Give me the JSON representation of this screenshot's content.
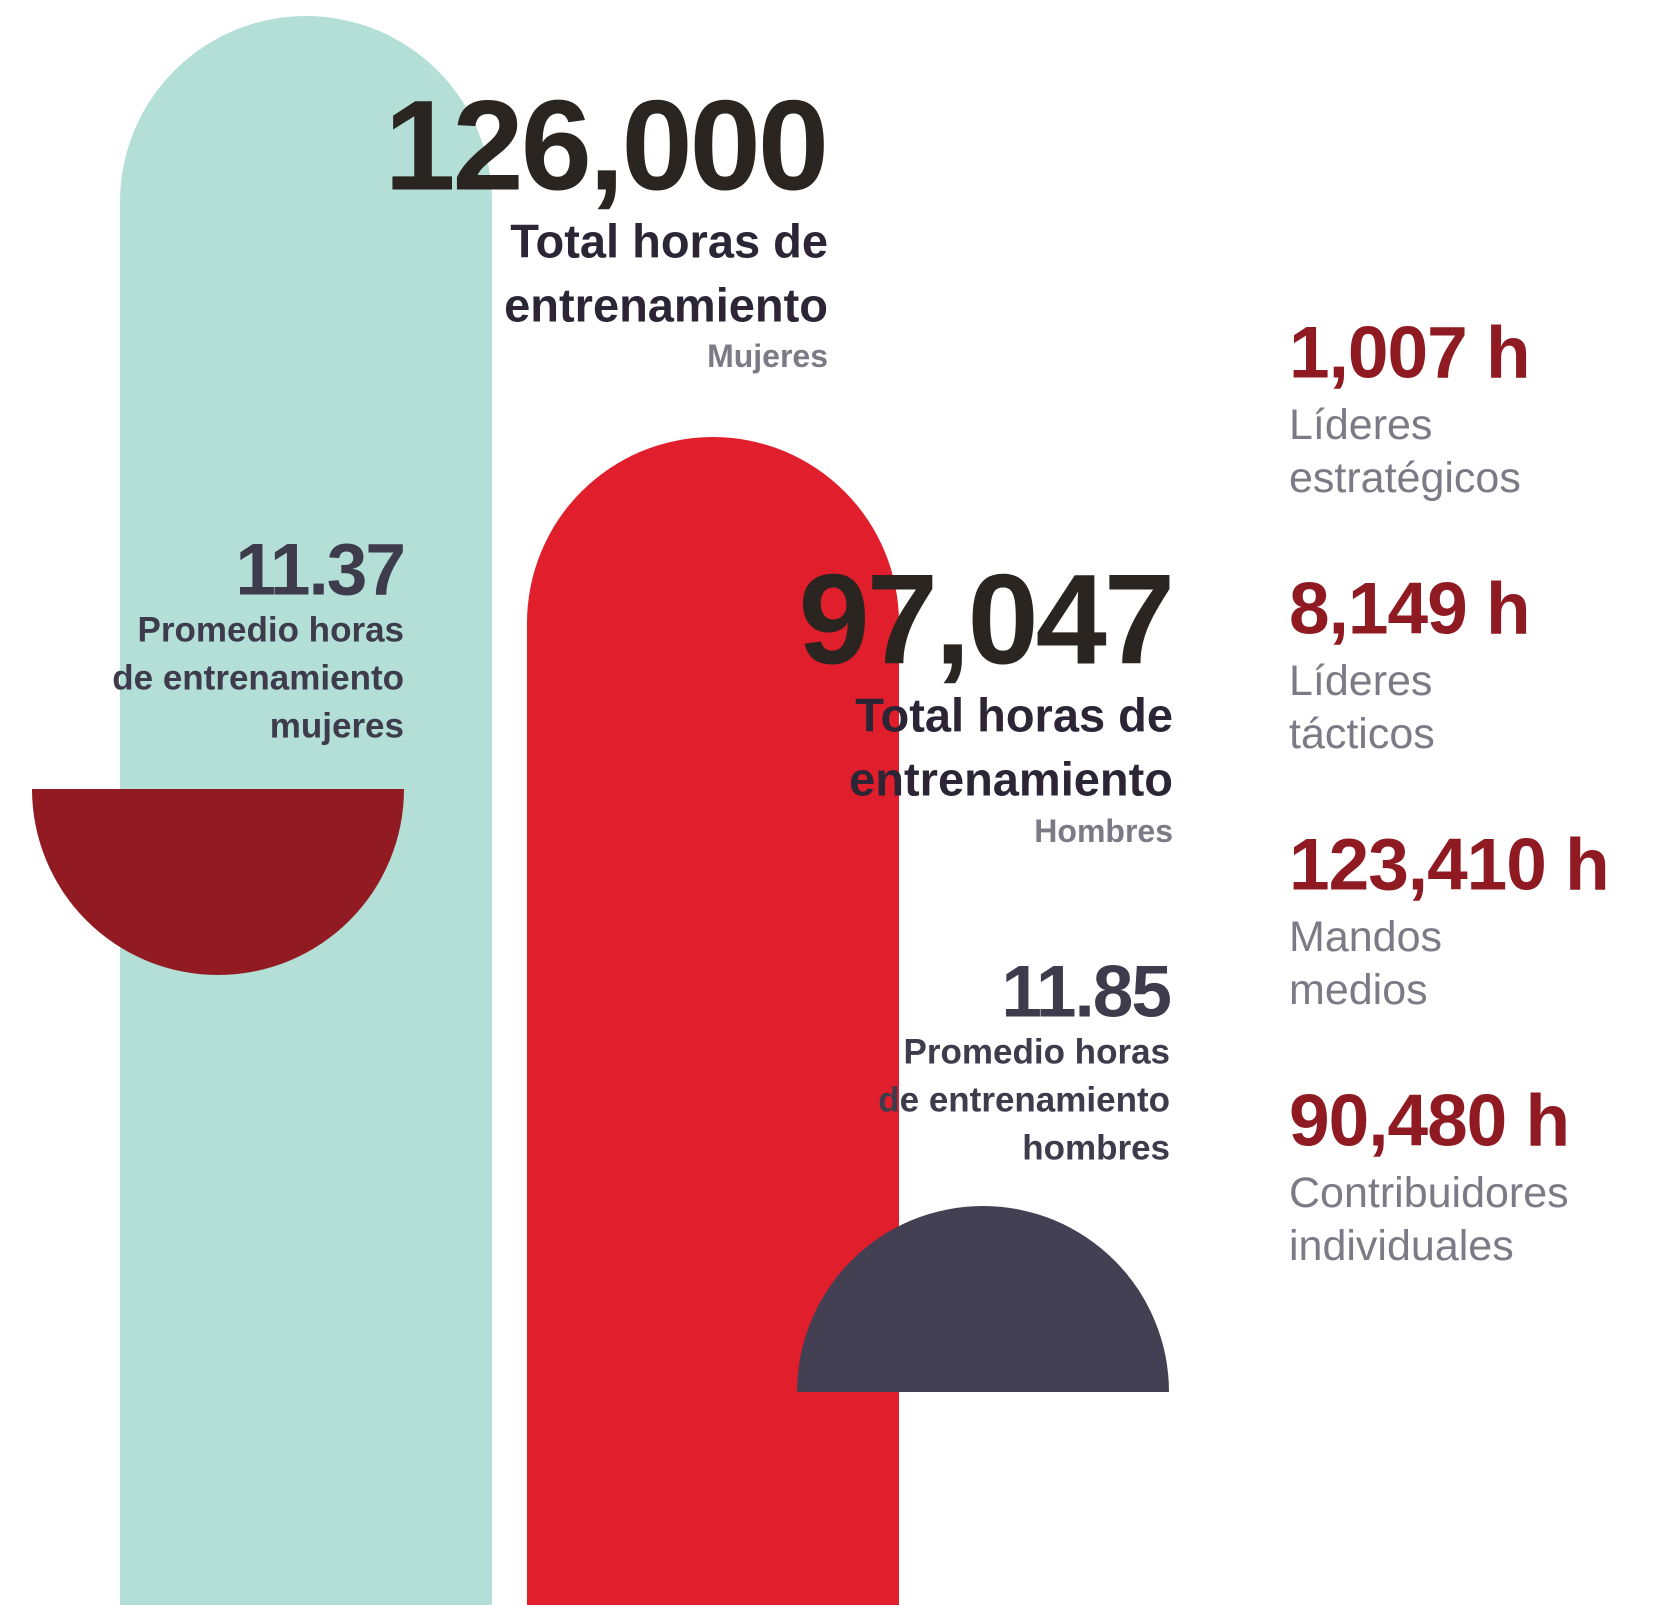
{
  "women": {
    "total": "126,000",
    "total_label": [
      "Total horas de",
      "entrenamiento"
    ],
    "group": "Mujeres",
    "average": "11.37",
    "average_label": [
      "Promedio horas",
      "de entrenamiento",
      "mujeres"
    ]
  },
  "men": {
    "total": "97,047",
    "total_label": [
      "Total horas de",
      "entrenamiento"
    ],
    "group": "Hombres",
    "average": "11.85",
    "average_label": [
      "Promedio horas",
      "de entrenamiento",
      "hombres"
    ]
  },
  "levels": [
    {
      "hours": "1,007 h",
      "label": [
        "Líderes",
        "estratégicos"
      ]
    },
    {
      "hours": "8,149 h",
      "label": [
        "Líderes",
        "tácticos"
      ]
    },
    {
      "hours": "123,410 h",
      "label": [
        "Mandos",
        "medios"
      ]
    },
    {
      "hours": "90,480 h",
      "label": [
        "Contribuidores",
        "individuales"
      ]
    }
  ]
}
